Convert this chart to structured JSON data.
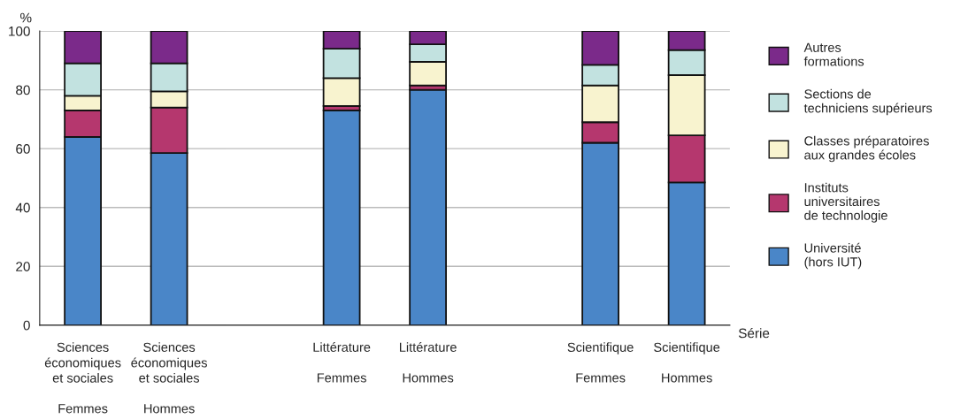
{
  "chart_data": {
    "type": "bar",
    "stacked": true,
    "categories": [
      "Sciences\néconomiques\net sociales\n\nFemmes",
      "Sciences\néconomiques\net sociales\n\nHommes",
      null,
      "Littérature\n\nFemmes",
      "Littérature\n\nHommes",
      null,
      "Scientifique\n\nFemmes",
      "Scientifique\n\nHommes"
    ],
    "series": [
      {
        "name": "Université\n(hors IUT)",
        "color": "#4a86c8",
        "values": [
          64,
          58.5,
          null,
          73,
          80,
          null,
          62,
          48.5
        ]
      },
      {
        "name": "Instituts\nuniversitaires\nde technologie",
        "color": "#b5376e",
        "values": [
          9,
          15.5,
          null,
          1.5,
          1.5,
          null,
          7,
          16
        ]
      },
      {
        "name": "Classes préparatoires\naux grandes écoles",
        "color": "#f8f3cf",
        "values": [
          5,
          5.5,
          null,
          9.5,
          8,
          null,
          12.5,
          20.5
        ]
      },
      {
        "name": "Sections de\ntechniciens supérieurs",
        "color": "#c2e2e0",
        "values": [
          11,
          9.5,
          null,
          10,
          6,
          null,
          7,
          8.5
        ]
      },
      {
        "name": "Autres\nformations",
        "color": "#7b2a8a",
        "values": [
          11,
          11,
          null,
          6,
          4.5,
          null,
          11.5,
          6.5
        ]
      }
    ],
    "ylabel": "%",
    "xlabel": "Série",
    "ylim": [
      0,
      100
    ],
    "yticks": [
      0,
      20,
      40,
      60,
      80,
      100
    ],
    "grid": "y",
    "legend": "right"
  }
}
